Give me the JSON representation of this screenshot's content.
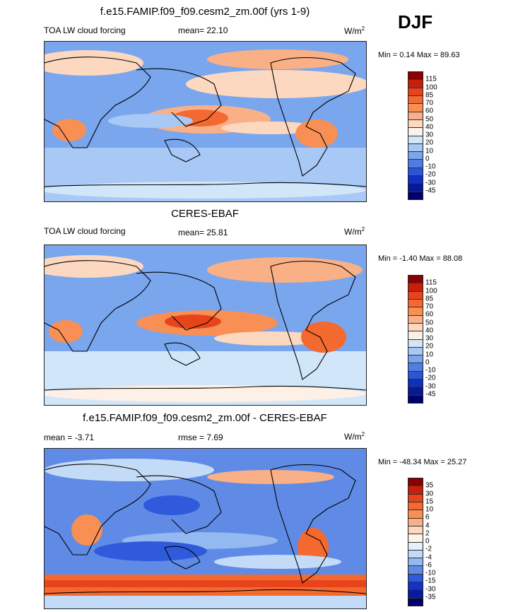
{
  "season": "DJF",
  "panels": [
    {
      "title": "f.e15.FAMIP.f09_f09.cesm2_zm.00f (yrs 1-9)",
      "left_label": "TOA LW cloud forcing",
      "mid_label": "mean=  22.10",
      "units_main": "W/m",
      "units_exp": "2",
      "minmax": "Min =   0.14 Max =  89.63"
    },
    {
      "title": "CERES-EBAF",
      "left_label": "TOA LW cloud forcing",
      "mid_label": "mean=  25.81",
      "units_main": "W/m",
      "units_exp": "2",
      "minmax": "Min =  -1.40 Max =  88.08"
    },
    {
      "title": "f.e15.FAMIP.f09_f09.cesm2_zm.00f - CERES-EBAF",
      "left_label": "mean =  -3.71",
      "mid_label": "rmse =   7.69",
      "units_main": "W/m",
      "units_exp": "2",
      "minmax": "Min = -48.34 Max =  25.27"
    }
  ],
  "chart_data": [
    {
      "type": "heatmap",
      "title": "f.e15.FAMIP.f09_f09.cesm2_zm.00f (yrs 1-9)",
      "variable": "TOA LW cloud forcing",
      "mean": 22.1,
      "min": 0.14,
      "max": 89.63,
      "units": "W/m2",
      "colorbar_levels": [
        "115",
        "100",
        "85",
        "70",
        "60",
        "50",
        "40",
        "30",
        "20",
        "10",
        "0",
        "-10",
        "-20",
        "-30",
        "-45"
      ],
      "colorbar_colors": [
        "#8b0000",
        "#c81e0e",
        "#e8441c",
        "#f4692f",
        "#f88f55",
        "#fab087",
        "#fdd8c0",
        "#fdf0e6",
        "#d2e6fa",
        "#a8c8f5",
        "#7aa6ee",
        "#4e7ee4",
        "#2c55d9",
        "#1030c4",
        "#061a94",
        "#00006e"
      ]
    },
    {
      "type": "heatmap",
      "title": "CERES-EBAF",
      "variable": "TOA LW cloud forcing",
      "mean": 25.81,
      "min": -1.4,
      "max": 88.08,
      "units": "W/m2",
      "colorbar_levels": [
        "115",
        "100",
        "85",
        "70",
        "60",
        "50",
        "40",
        "30",
        "20",
        "10",
        "0",
        "-10",
        "-20",
        "-30",
        "-45"
      ],
      "colorbar_colors": [
        "#8b0000",
        "#c81e0e",
        "#e8441c",
        "#f4692f",
        "#f88f55",
        "#fab087",
        "#fdd8c0",
        "#fdf0e6",
        "#d2e6fa",
        "#a8c8f5",
        "#7aa6ee",
        "#4e7ee4",
        "#2c55d9",
        "#1030c4",
        "#061a94",
        "#00006e"
      ]
    },
    {
      "type": "heatmap",
      "title": "f.e15.FAMIP.f09_f09.cesm2_zm.00f - CERES-EBAF",
      "mean": -3.71,
      "rmse": 7.69,
      "min": -48.34,
      "max": 25.27,
      "units": "W/m2",
      "colorbar_levels": [
        "35",
        "30",
        "15",
        "10",
        "6",
        "4",
        "2",
        "0",
        "-2",
        "-4",
        "-6",
        "-10",
        "-15",
        "-30",
        "-35"
      ],
      "colorbar_colors": [
        "#8b0000",
        "#c81e0e",
        "#e8441c",
        "#f4692f",
        "#f88f55",
        "#fab087",
        "#fdd8c0",
        "#fdf4ec",
        "#e6f0fb",
        "#c4dbf7",
        "#94b8f0",
        "#5f8be6",
        "#2f5adb",
        "#1133c6",
        "#061c9a",
        "#00006e"
      ]
    }
  ]
}
